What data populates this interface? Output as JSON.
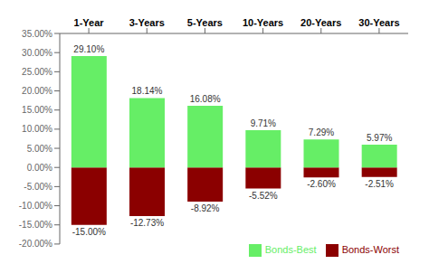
{
  "chart_data": {
    "type": "bar",
    "categories": [
      "1-Year",
      "3-Years",
      "5-Years",
      "10-Years",
      "20-Years",
      "30-Years"
    ],
    "series": [
      {
        "name": "Bonds-Worst",
        "color": "#8B0000",
        "values": [
          -15.0,
          -12.73,
          -8.92,
          -5.52,
          -2.6,
          -2.51
        ],
        "value_labels": [
          "-15.00%",
          "-12.73%",
          "-8.92%",
          "-5.52%",
          "-2.60%",
          "-2.51%"
        ]
      },
      {
        "name": "Bonds-Best",
        "color": "#66EE66",
        "values": [
          29.1,
          18.14,
          16.08,
          9.71,
          7.29,
          5.97
        ],
        "value_labels": [
          "29.10%",
          "18.14%",
          "16.08%",
          "9.71%",
          "7.29%",
          "5.97%"
        ]
      }
    ],
    "ylim": [
      -20,
      35
    ],
    "yticks": [
      {
        "value": -20,
        "label": "-20.00%"
      },
      {
        "value": -15,
        "label": "-15.00%"
      },
      {
        "value": -10,
        "label": "-10.00%"
      },
      {
        "value": -5,
        "label": "-5.00%"
      },
      {
        "value": 0,
        "label": "0.00%"
      },
      {
        "value": 5,
        "label": "5.00%"
      },
      {
        "value": 10,
        "label": "10.00%"
      },
      {
        "value": 15,
        "label": "15.00%"
      },
      {
        "value": 20,
        "label": "20.00%"
      },
      {
        "value": 25,
        "label": "25.00%"
      },
      {
        "value": 30,
        "label": "30.00%"
      },
      {
        "value": 35,
        "label": "35.00%"
      }
    ],
    "data_labels": true,
    "legend": "lower right",
    "grid": false
  }
}
